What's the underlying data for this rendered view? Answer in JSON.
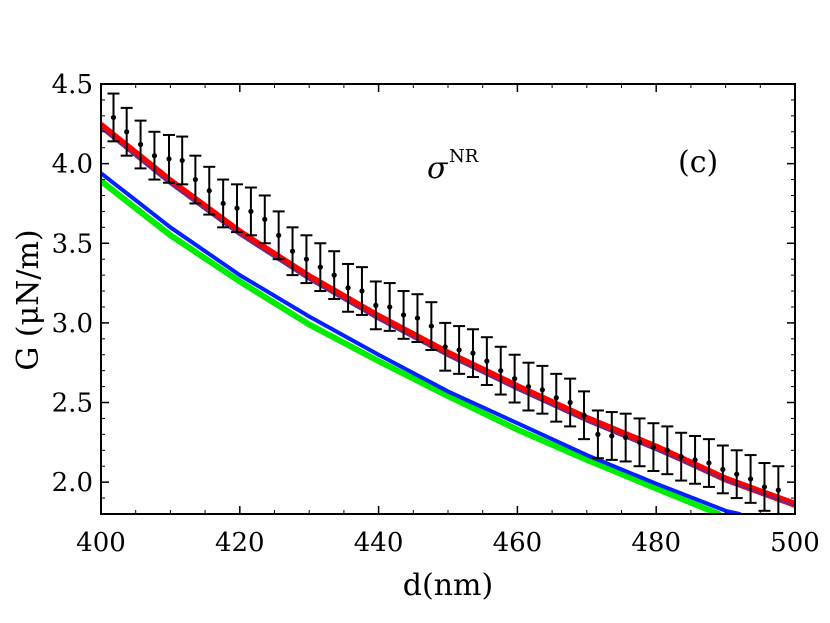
{
  "chart_data": {
    "type": "line",
    "title": "",
    "xlabel": "d(nm)",
    "ylabel": "G (μN/m)",
    "xlim": [
      400,
      500
    ],
    "ylim": [
      1.8,
      4.5
    ],
    "xticks": [
      400,
      420,
      440,
      460,
      480,
      500
    ],
    "yticks": [
      2.0,
      2.5,
      3.0,
      3.5,
      4.0,
      4.5
    ],
    "xtick_labels": [
      "400",
      "420",
      "440",
      "460",
      "480",
      "500"
    ],
    "ytick_labels": [
      "2.0",
      "2.5",
      "3.0",
      "3.5",
      "4.0",
      "4.5"
    ],
    "annotations": {
      "sigma_symbol": "σ",
      "sigma_superscript": "NR",
      "panel_label": "(c)"
    },
    "series": [
      {
        "name": "red",
        "color": "#ff0000",
        "x": [
          400,
          410,
          420,
          430,
          440,
          450,
          460,
          470,
          480,
          490,
          500
        ],
        "y": [
          4.24,
          3.89,
          3.57,
          3.29,
          3.04,
          2.81,
          2.6,
          2.4,
          2.22,
          2.02,
          1.86
        ]
      },
      {
        "name": "purple",
        "color": "#6b2a8a",
        "x": [
          400,
          410,
          420,
          430,
          440,
          450,
          460,
          470,
          480,
          490,
          500
        ],
        "y": [
          4.22,
          3.87,
          3.55,
          3.27,
          3.02,
          2.79,
          2.58,
          2.38,
          2.2,
          2.01,
          1.85
        ]
      },
      {
        "name": "blue",
        "color": "#0022ff",
        "x": [
          400,
          410,
          420,
          430,
          440,
          450,
          460,
          470,
          480,
          490,
          492
        ],
        "y": [
          3.94,
          3.6,
          3.3,
          3.04,
          2.8,
          2.57,
          2.37,
          2.17,
          1.99,
          1.82,
          1.8
        ]
      },
      {
        "name": "green",
        "color": "#00ee00",
        "x": [
          400,
          410,
          420,
          430,
          440,
          450,
          460,
          470,
          480,
          489
        ],
        "y": [
          3.89,
          3.55,
          3.26,
          2.99,
          2.76,
          2.54,
          2.33,
          2.14,
          1.96,
          1.8
        ]
      }
    ],
    "error_points": {
      "color": "#000000",
      "x": [
        401.8,
        403.7,
        405.7,
        407.7,
        409.8,
        411.7,
        413.6,
        415.6,
        417.6,
        419.6,
        421.6,
        423.6,
        425.6,
        427.6,
        429.6,
        431.6,
        433.6,
        435.6,
        437.6,
        439.6,
        441.6,
        443.6,
        445.6,
        447.6,
        449.6,
        451.6,
        453.6,
        455.6,
        457.6,
        459.6,
        461.6,
        463.6,
        465.6,
        467.6,
        469.6,
        471.6,
        473.6,
        475.6,
        477.6,
        479.6,
        481.6,
        483.6,
        485.6,
        487.6,
        489.6,
        491.6,
        493.6,
        495.6,
        497.6
      ],
      "y": [
        4.29,
        4.2,
        4.12,
        4.05,
        4.03,
        4.02,
        3.9,
        3.83,
        3.75,
        3.72,
        3.7,
        3.65,
        3.55,
        3.45,
        3.4,
        3.35,
        3.3,
        3.22,
        3.2,
        3.11,
        3.1,
        3.05,
        3.03,
        2.98,
        2.85,
        2.83,
        2.81,
        2.76,
        2.7,
        2.65,
        2.6,
        2.58,
        2.53,
        2.5,
        2.42,
        2.3,
        2.29,
        2.28,
        2.25,
        2.22,
        2.2,
        2.16,
        2.14,
        2.12,
        2.08,
        2.05,
        2.02,
        1.97,
        1.95
      ],
      "err": [
        0.15,
        0.15,
        0.15,
        0.15,
        0.15,
        0.15,
        0.15,
        0.15,
        0.15,
        0.15,
        0.15,
        0.15,
        0.15,
        0.15,
        0.15,
        0.15,
        0.15,
        0.15,
        0.15,
        0.15,
        0.15,
        0.15,
        0.15,
        0.15,
        0.15,
        0.15,
        0.15,
        0.15,
        0.15,
        0.15,
        0.15,
        0.15,
        0.15,
        0.15,
        0.15,
        0.15,
        0.15,
        0.15,
        0.15,
        0.15,
        0.15,
        0.15,
        0.15,
        0.15,
        0.15,
        0.15,
        0.15,
        0.15,
        0.15
      ]
    }
  }
}
